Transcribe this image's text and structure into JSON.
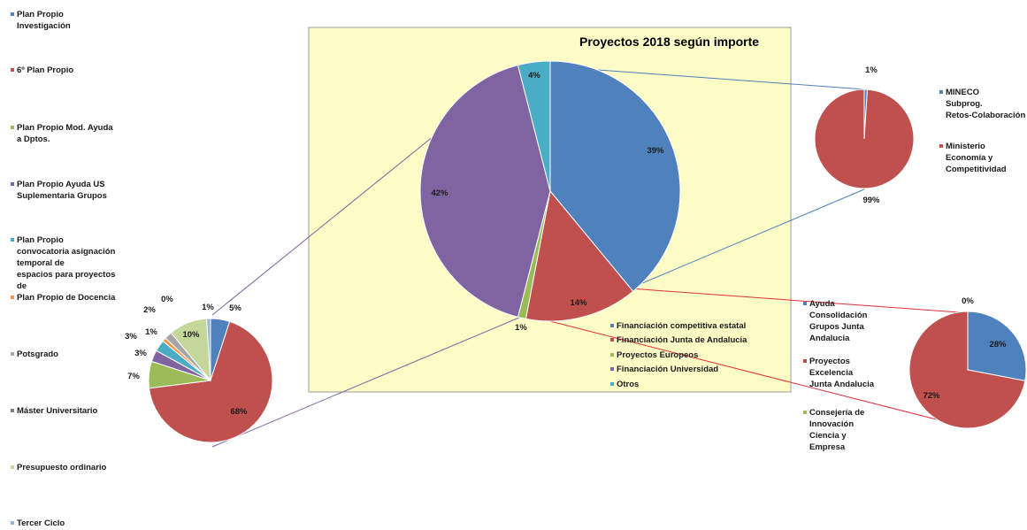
{
  "chart_data": [
    {
      "type": "pie",
      "title": "Proyectos 2018 según importe",
      "labels": [
        "Financiación competitiva estatal",
        "Financiación Junta de Andalucía",
        "Proyectos Europeos",
        "Financiación Universidad",
        "Otros"
      ],
      "values": [
        39,
        14,
        1,
        42,
        4
      ],
      "value_labels": [
        "39%",
        "14%",
        "1%",
        "42%",
        "4%"
      ],
      "colors": [
        "#4f81bd",
        "#c0504d",
        "#9bbb59",
        "#8064a2",
        "#4bacc6"
      ],
      "legend_position": "bottom-right",
      "background": "#fdfbc6"
    },
    {
      "type": "pie",
      "labels": [
        "MINECO Subprog. Retos-Colaboración",
        "Ministerio Economía y Competitividad"
      ],
      "values": [
        1,
        99
      ],
      "value_labels": [
        "1%",
        "99%"
      ],
      "colors": [
        "#4f81bd",
        "#c0504d"
      ],
      "legend_position": "right"
    },
    {
      "type": "pie",
      "labels": [
        "Ayuda Consolidación Grupos Junta Andalucia",
        "Proyectos Excelencia Junta Andalucia",
        "Consejería de Innovación Ciencia y Empresa"
      ],
      "values": [
        28,
        72,
        0
      ],
      "value_labels": [
        "28%",
        "72%",
        "0%"
      ],
      "colors": [
        "#4f81bd",
        "#c0504d",
        "#9bbb59"
      ],
      "legend_position": "left"
    },
    {
      "type": "pie",
      "labels": [
        "Plan Propio Investigación US",
        "6º Plan Propio",
        "Plan Propio Mod. Ayuda a Dptos.",
        "Plan Propio Ayuda US Suplementaria Grupos",
        "Plan Propio convocatoria asignación temporal de espacios para proyectos de investigación",
        "Plan Propio de Docencia",
        "Potsgrado",
        "Máster Universitario",
        "Presupuesto ordinario",
        "Tercer Ciclo"
      ],
      "values": [
        5,
        68,
        7,
        3,
        3,
        1,
        2,
        0,
        10,
        1
      ],
      "value_labels": [
        "5%",
        "68%",
        "7%",
        "3%",
        "3%",
        "1%",
        "2%",
        "0%",
        "10%",
        "1%"
      ],
      "colors": [
        "#4f81bd",
        "#c0504d",
        "#9bbb59",
        "#8064a2",
        "#4bacc6",
        "#f79646",
        "#a6a6a6",
        "#7f7f7f",
        "#c4d79b",
        "#95b3d7"
      ],
      "legend_position": "left"
    }
  ]
}
